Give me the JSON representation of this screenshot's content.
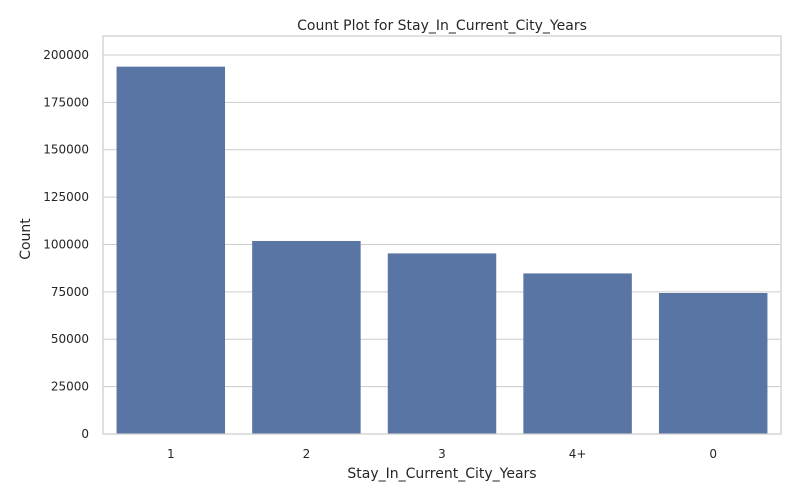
{
  "chart_data": {
    "type": "bar",
    "title": "Count Plot for Stay_In_Current_City_Years",
    "xlabel": "Stay_In_Current_City_Years",
    "ylabel": "Count",
    "categories": [
      "1",
      "2",
      "3",
      "4+",
      "0"
    ],
    "values": [
      193821,
      101838,
      95285,
      84726,
      74398
    ],
    "ylim": [
      0,
      210000
    ],
    "yticks": [
      0,
      25000,
      50000,
      75000,
      100000,
      125000,
      150000,
      175000,
      200000
    ],
    "ytick_labels": [
      "0",
      "25000",
      "50000",
      "75000",
      "100000",
      "125000",
      "150000",
      "175000",
      "200000"
    ],
    "grid": true,
    "bar_color": "#5975a4",
    "grid_color": "#cccccc",
    "frame_color": "#cccccc"
  }
}
